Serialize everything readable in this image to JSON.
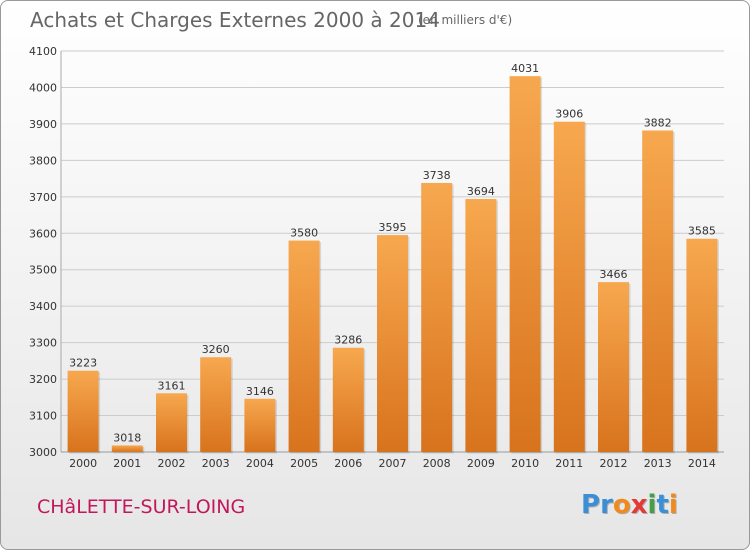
{
  "header": {
    "title": "Achats et Charges Externes 2000 à 2014",
    "subtitle": "(en milliers d'€)"
  },
  "footer": {
    "town": "CHâLETTE-SUR-LOING",
    "town_color": "#c2185b",
    "logo_letters": [
      "P",
      "r",
      "o",
      "x",
      "i",
      "t",
      "i"
    ],
    "logo_colors": [
      "#3b8fd6",
      "#3b8fd6",
      "#f08a1c",
      "#e53935",
      "#43a047",
      "#3b8fd6",
      "#f08a1c"
    ]
  },
  "colors": {
    "bar_top": "#f7a84f",
    "bar_bottom": "#d8731d",
    "grid": "#cccccc",
    "axis_text": "#333333"
  },
  "chart_data": {
    "type": "bar",
    "title": "Achats et Charges Externes 2000 à 2014",
    "subtitle": "(en milliers d'€)",
    "categories": [
      "2000",
      "2001",
      "2002",
      "2003",
      "2004",
      "2005",
      "2006",
      "2007",
      "2008",
      "2009",
      "2010",
      "2011",
      "2012",
      "2013",
      "2014"
    ],
    "values": [
      3223,
      3018,
      3161,
      3260,
      3146,
      3580,
      3286,
      3595,
      3738,
      3694,
      4031,
      3906,
      3466,
      3882,
      3585
    ],
    "xlabel": "",
    "ylabel": "",
    "ylim": [
      3000,
      4100
    ],
    "yticks": [
      3000,
      3100,
      3200,
      3300,
      3400,
      3500,
      3600,
      3700,
      3800,
      3900,
      4000,
      4100
    ],
    "grid": true,
    "data_labels": true
  }
}
